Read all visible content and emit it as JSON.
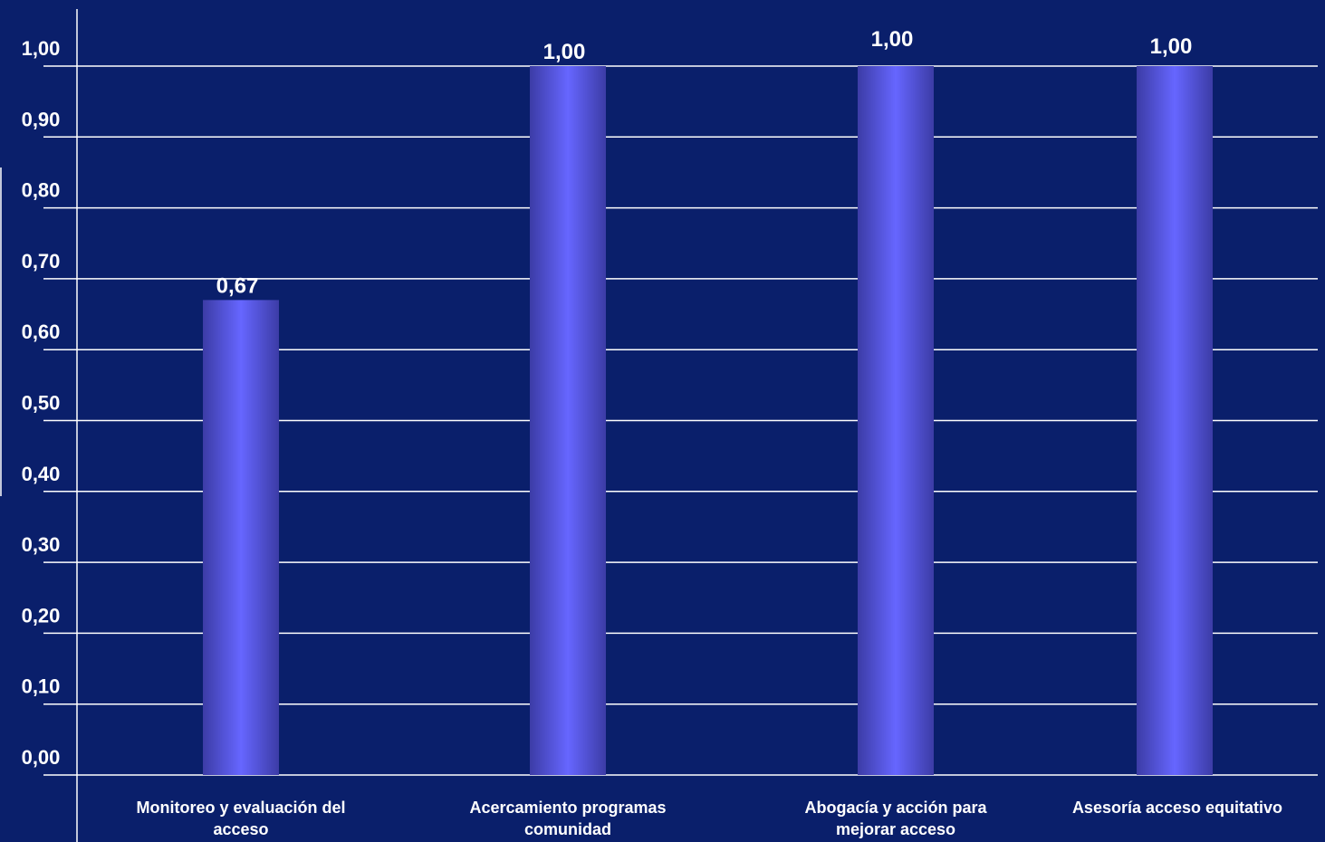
{
  "colors": {
    "background": "#0a1f6b",
    "bar_light": "#6464ff",
    "bar_dark": "#3c3ca6",
    "grid": "#ffffff",
    "text": "#ffffff"
  },
  "chart_data": {
    "type": "bar",
    "categories": [
      [
        "Monitoreo y evaluación del",
        "acceso"
      ],
      [
        "Acercamiento programas",
        "comunidad"
      ],
      [
        "Abogacía y acción para",
        "mejorar acceso"
      ],
      [
        "Asesoría acceso equitativo"
      ]
    ],
    "values": [
      0.67,
      1.0,
      1.0,
      1.0
    ],
    "value_labels": [
      "0,67",
      "1,00",
      "1,00",
      "1,00"
    ],
    "yticks": [
      "0,00",
      "0,10",
      "0,20",
      "0,30",
      "0,40",
      "0,50",
      "0,60",
      "0,70",
      "0,80",
      "0,90",
      "1,00"
    ],
    "ylim": [
      0,
      1
    ],
    "grid": true,
    "legend": false,
    "title": "",
    "xlabel": "",
    "ylabel": ""
  }
}
